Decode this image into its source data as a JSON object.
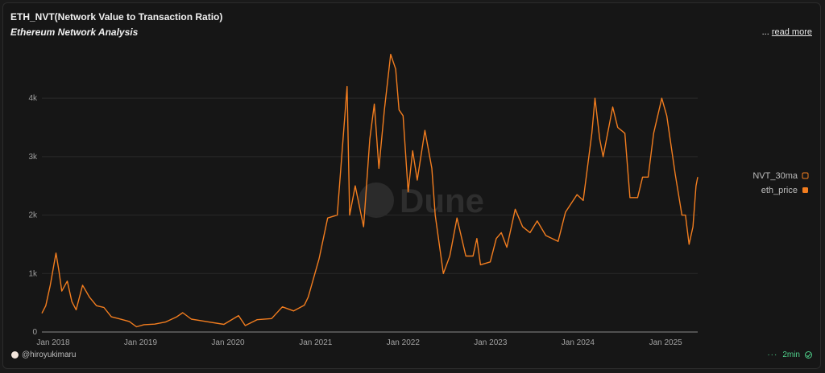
{
  "header": {
    "title": "ETH_NVT(Network Value to Transaction Ratio)",
    "subtitle": "Ethereum Network Analysis",
    "read_more_prefix": "...",
    "read_more": "read more"
  },
  "footer": {
    "author": "@hiroyukimaru",
    "refresh": "2min"
  },
  "watermark": "Dune",
  "colors": {
    "eth_price": "#f27d1f",
    "nvt_30ma": "#6b6bd6",
    "grid": "#2a2a2a",
    "axis": "#8a8a8a"
  },
  "chart_data": {
    "type": "line",
    "legend_position": "right",
    "grid": true,
    "ylim": [
      0,
      4800
    ],
    "xlim": [
      "2017-11-15",
      "2025-05-15"
    ],
    "yticks": [
      0,
      1000,
      2000,
      3000,
      4000
    ],
    "ytick_labels": [
      "0",
      "1k",
      "2k",
      "3k",
      "4k"
    ],
    "xtick_labels": [
      "Jan 2018",
      "Jan 2019",
      "Jan 2020",
      "Jan 2021",
      "Jan 2022",
      "Jan 2023",
      "Jan 2024",
      "Jan 2025"
    ],
    "xticks": [
      "2018-01-01",
      "2019-01-01",
      "2020-01-01",
      "2021-01-01",
      "2022-01-01",
      "2023-01-01",
      "2024-01-01",
      "2025-01-01"
    ],
    "series": [
      {
        "name": "NVT_30ma",
        "legend_only": true,
        "points": []
      },
      {
        "name": "eth_price",
        "points": [
          [
            "2017-11-15",
            320
          ],
          [
            "2017-12-01",
            450
          ],
          [
            "2017-12-20",
            800
          ],
          [
            "2018-01-13",
            1350
          ],
          [
            "2018-01-25",
            1050
          ],
          [
            "2018-02-06",
            700
          ],
          [
            "2018-03-01",
            870
          ],
          [
            "2018-03-20",
            520
          ],
          [
            "2018-04-07",
            380
          ],
          [
            "2018-05-04",
            800
          ],
          [
            "2018-06-01",
            600
          ],
          [
            "2018-07-01",
            450
          ],
          [
            "2018-08-01",
            420
          ],
          [
            "2018-09-01",
            260
          ],
          [
            "2018-10-01",
            230
          ],
          [
            "2018-11-15",
            180
          ],
          [
            "2018-12-15",
            90
          ],
          [
            "2019-01-15",
            125
          ],
          [
            "2019-03-01",
            135
          ],
          [
            "2019-04-15",
            170
          ],
          [
            "2019-06-01",
            260
          ],
          [
            "2019-06-26",
            330
          ],
          [
            "2019-08-01",
            220
          ],
          [
            "2019-10-01",
            180
          ],
          [
            "2019-12-15",
            130
          ],
          [
            "2020-02-14",
            280
          ],
          [
            "2020-03-13",
            110
          ],
          [
            "2020-05-01",
            210
          ],
          [
            "2020-07-01",
            230
          ],
          [
            "2020-08-15",
            430
          ],
          [
            "2020-10-01",
            360
          ],
          [
            "2020-11-15",
            460
          ],
          [
            "2020-12-01",
            600
          ],
          [
            "2021-01-15",
            1250
          ],
          [
            "2021-02-20",
            1950
          ],
          [
            "2021-04-01",
            2000
          ],
          [
            "2021-05-12",
            4200
          ],
          [
            "2021-05-23",
            2000
          ],
          [
            "2021-06-15",
            2500
          ],
          [
            "2021-07-20",
            1800
          ],
          [
            "2021-08-15",
            3300
          ],
          [
            "2021-09-03",
            3900
          ],
          [
            "2021-09-22",
            2800
          ],
          [
            "2021-10-15",
            3800
          ],
          [
            "2021-11-10",
            4750
          ],
          [
            "2021-12-01",
            4500
          ],
          [
            "2021-12-15",
            3800
          ],
          [
            "2022-01-01",
            3700
          ],
          [
            "2022-01-22",
            2400
          ],
          [
            "2022-02-10",
            3100
          ],
          [
            "2022-03-01",
            2600
          ],
          [
            "2022-04-02",
            3450
          ],
          [
            "2022-05-01",
            2800
          ],
          [
            "2022-05-15",
            2000
          ],
          [
            "2022-06-18",
            1000
          ],
          [
            "2022-07-15",
            1300
          ],
          [
            "2022-08-14",
            1950
          ],
          [
            "2022-09-20",
            1300
          ],
          [
            "2022-10-20",
            1300
          ],
          [
            "2022-11-05",
            1600
          ],
          [
            "2022-11-20",
            1150
          ],
          [
            "2022-12-31",
            1200
          ],
          [
            "2023-01-25",
            1600
          ],
          [
            "2023-02-15",
            1700
          ],
          [
            "2023-03-10",
            1450
          ],
          [
            "2023-04-14",
            2100
          ],
          [
            "2023-05-15",
            1800
          ],
          [
            "2023-06-15",
            1700
          ],
          [
            "2023-07-15",
            1900
          ],
          [
            "2023-08-20",
            1650
          ],
          [
            "2023-10-10",
            1550
          ],
          [
            "2023-11-10",
            2050
          ],
          [
            "2023-12-28",
            2350
          ],
          [
            "2024-01-23",
            2250
          ],
          [
            "2024-02-28",
            3400
          ],
          [
            "2024-03-12",
            4000
          ],
          [
            "2024-04-01",
            3300
          ],
          [
            "2024-04-15",
            3000
          ],
          [
            "2024-05-25",
            3850
          ],
          [
            "2024-06-15",
            3500
          ],
          [
            "2024-07-15",
            3400
          ],
          [
            "2024-08-05",
            2300
          ],
          [
            "2024-09-06",
            2300
          ],
          [
            "2024-09-27",
            2650
          ],
          [
            "2024-10-20",
            2650
          ],
          [
            "2024-11-12",
            3400
          ],
          [
            "2024-12-16",
            4000
          ],
          [
            "2025-01-06",
            3700
          ],
          [
            "2025-01-20",
            3300
          ],
          [
            "2025-02-10",
            2700
          ],
          [
            "2025-03-10",
            2000
          ],
          [
            "2025-03-25",
            2000
          ],
          [
            "2025-04-09",
            1500
          ],
          [
            "2025-04-25",
            1800
          ],
          [
            "2025-05-08",
            2500
          ],
          [
            "2025-05-15",
            2650
          ]
        ]
      }
    ]
  }
}
